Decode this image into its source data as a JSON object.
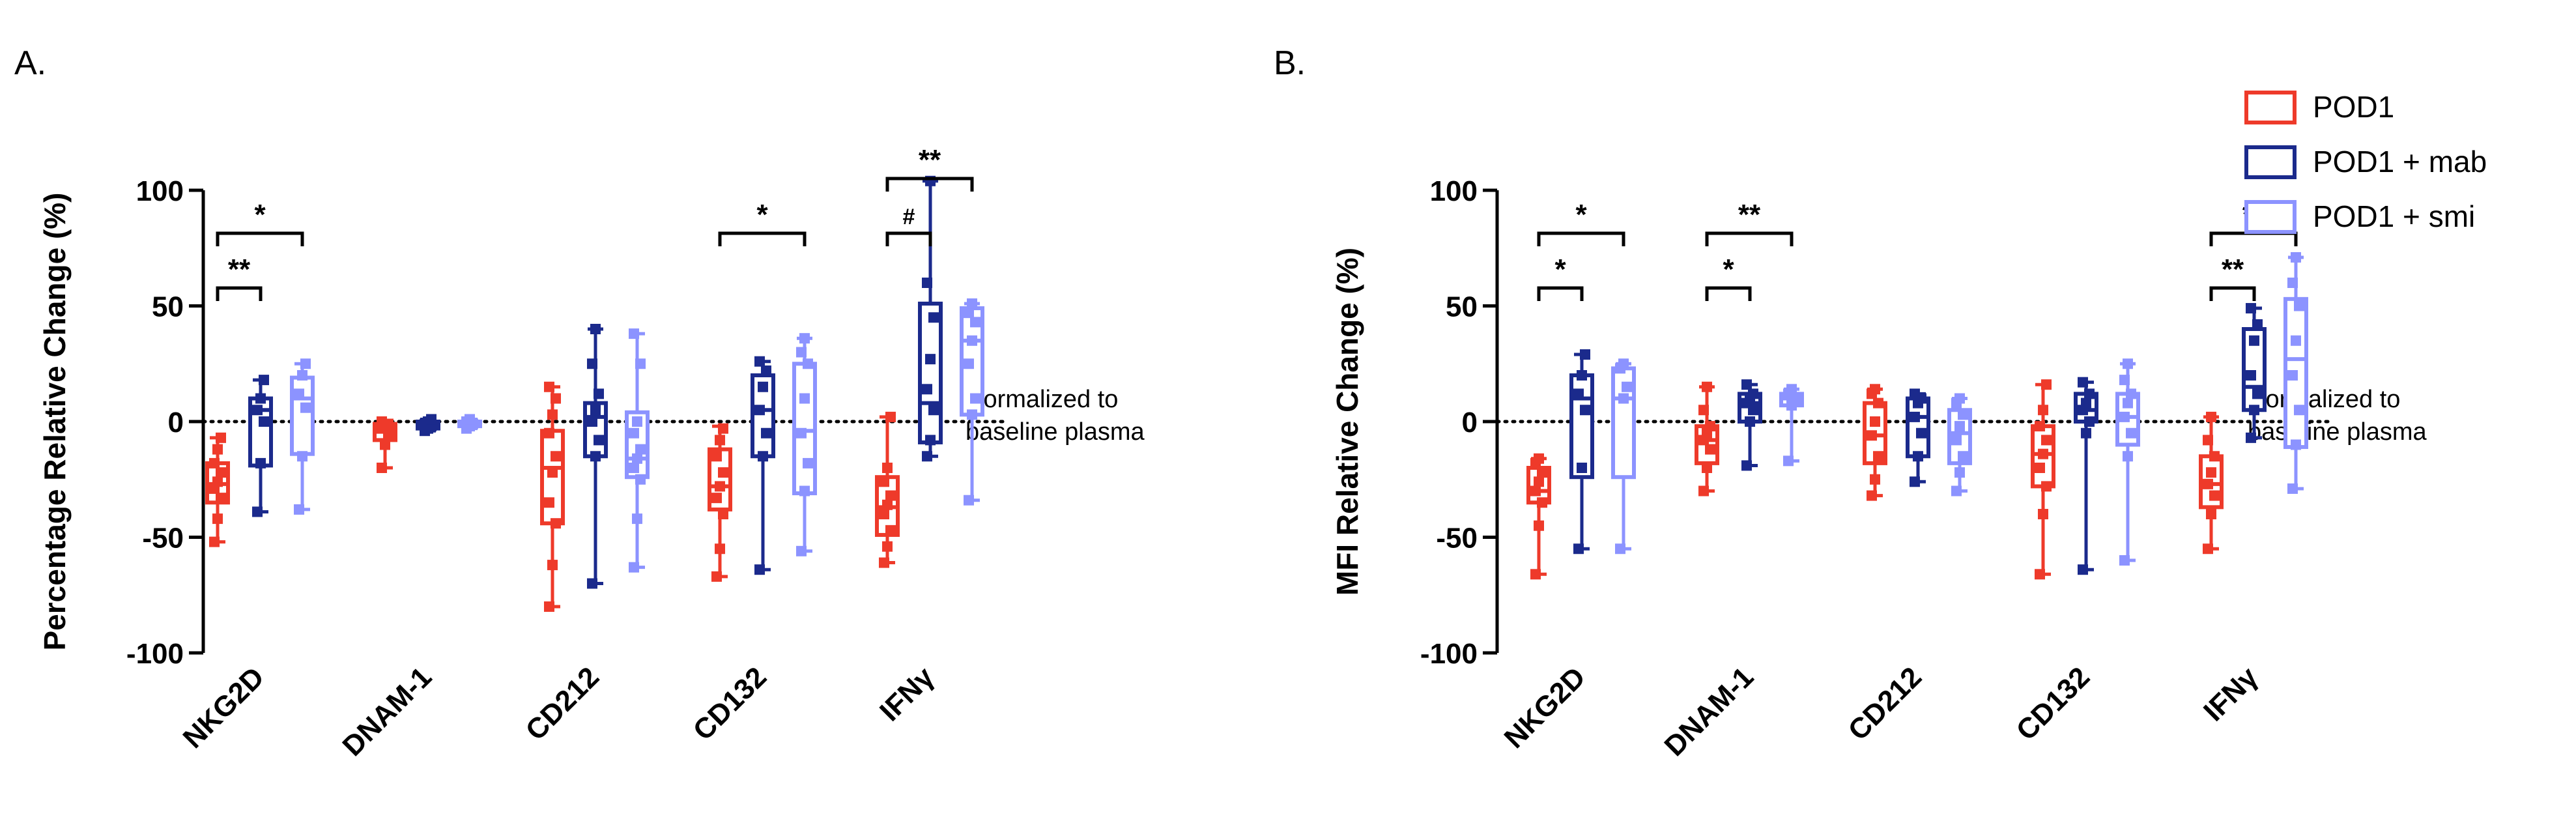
{
  "colors": {
    "pod1": "#ee3a2a",
    "mab": "#1b2a8c",
    "smi": "#8c93ff",
    "axis": "#000000"
  },
  "legend": {
    "entries": [
      {
        "key": "pod1",
        "label": "POD1"
      },
      {
        "key": "mab",
        "label": "POD1 + mab"
      },
      {
        "key": "smi",
        "label": "POD1 + smi"
      }
    ]
  },
  "chart_data": [
    {
      "panel_label": "A.",
      "type": "boxplot",
      "ylabel": "Percentage Relative Change (%)",
      "ylim": [
        -100,
        100
      ],
      "yticks": [
        "100",
        "50",
        "0",
        "-50",
        "-100"
      ],
      "categories": [
        "NKG2D",
        "DNAM-1",
        "CD212",
        "CD132",
        "IFNγ"
      ],
      "reference_line": {
        "y": 0,
        "style": "dotted",
        "note_lines": [
          "Normalized to",
          "baseline plasma"
        ]
      },
      "series": [
        {
          "key": "pod1",
          "name": "POD1",
          "boxes": [
            {
              "min": -52,
              "q1": -35,
              "median": -27,
              "q3": -18,
              "max": -7,
              "points": [
                -52,
                -42,
                -33,
                -29,
                -26,
                -22,
                -18,
                -12,
                -7
              ]
            },
            {
              "min": -20,
              "q1": -8,
              "median": -3,
              "q3": -1,
              "max": 0,
              "points": [
                -20,
                -10,
                -5,
                -3,
                -2,
                -1,
                0
              ]
            },
            {
              "min": -80,
              "q1": -44,
              "median": -20,
              "q3": -4,
              "max": 15,
              "points": [
                -80,
                -62,
                -44,
                -35,
                -22,
                -15,
                -5,
                3,
                10,
                15
              ]
            },
            {
              "min": -67,
              "q1": -38,
              "median": -28,
              "q3": -12,
              "max": -2,
              "points": [
                -67,
                -55,
                -40,
                -33,
                -28,
                -22,
                -15,
                -8,
                -3
              ]
            },
            {
              "min": -61,
              "q1": -49,
              "median": -37,
              "q3": -24,
              "max": 2,
              "points": [
                -61,
                -54,
                -47,
                -40,
                -36,
                -32,
                -26,
                -20,
                2
              ]
            }
          ]
        },
        {
          "key": "mab",
          "name": "POD1 + mab",
          "boxes": [
            {
              "min": -39,
              "q1": -19,
              "median": 5,
              "q3": 10,
              "max": 18,
              "points": [
                -39,
                -18,
                0,
                5,
                10,
                18
              ]
            },
            {
              "min": -4,
              "q1": -3,
              "median": -2,
              "q3": 0,
              "max": 1,
              "points": [
                -4,
                -3,
                -2,
                -1,
                0,
                1
              ]
            },
            {
              "min": -70,
              "q1": -15,
              "median": 2,
              "q3": 8,
              "max": 40,
              "points": [
                -70,
                -15,
                -8,
                0,
                5,
                12,
                25,
                40
              ]
            },
            {
              "min": -64,
              "q1": -15,
              "median": 5,
              "q3": 20,
              "max": 26,
              "points": [
                -64,
                -15,
                -5,
                5,
                15,
                22,
                26
              ]
            },
            {
              "min": -15,
              "q1": -9,
              "median": 8,
              "q3": 51,
              "max": 104,
              "points": [
                -15,
                -8,
                5,
                14,
                27,
                45,
                60,
                104
              ]
            }
          ]
        },
        {
          "key": "smi",
          "name": "POD1 + smi",
          "boxes": [
            {
              "min": -38,
              "q1": -14,
              "median": 10,
              "q3": 19,
              "max": 25,
              "points": [
                -38,
                -15,
                6,
                12,
                20,
                25
              ]
            },
            {
              "min": -3,
              "q1": -2,
              "median": -1,
              "q3": 0,
              "max": 1,
              "points": [
                -3,
                -2,
                -1,
                0,
                1
              ]
            },
            {
              "min": -63,
              "q1": -24,
              "median": -16,
              "q3": 4,
              "max": 38,
              "points": [
                -63,
                -42,
                -25,
                -20,
                -16,
                -12,
                -5,
                0,
                25,
                38
              ]
            },
            {
              "min": -56,
              "q1": -31,
              "median": -4,
              "q3": 25,
              "max": 36,
              "points": [
                -56,
                -30,
                -18,
                -5,
                10,
                25,
                30,
                36
              ]
            },
            {
              "min": -34,
              "q1": 3,
              "median": 35,
              "q3": 49,
              "max": 51,
              "points": [
                -34,
                3,
                10,
                25,
                35,
                43,
                47,
                51
              ]
            }
          ]
        }
      ],
      "significance": [
        {
          "cat": 0,
          "from": "pod1",
          "to": "mab",
          "level": 1,
          "label": "**"
        },
        {
          "cat": 0,
          "from": "pod1",
          "to": "smi",
          "level": 2,
          "label": "*"
        },
        {
          "cat": 3,
          "from": "pod1",
          "to": "smi",
          "level": 2,
          "label": "*"
        },
        {
          "cat": 4,
          "from": "pod1",
          "to": "mab",
          "level": 2,
          "label": "#"
        },
        {
          "cat": 4,
          "from": "pod1",
          "to": "smi",
          "level": 3,
          "label": "**"
        }
      ]
    },
    {
      "panel_label": "B.",
      "type": "boxplot",
      "ylabel": "MFI Relative Change (%)",
      "ylim": [
        -100,
        100
      ],
      "yticks": [
        "100",
        "50",
        "0",
        "-50",
        "-100"
      ],
      "categories": [
        "NKG2D",
        "DNAM-1",
        "CD212",
        "CD132",
        "IFNγ"
      ],
      "reference_line": {
        "y": 0,
        "style": "dotted",
        "note_lines": [
          "Normalized to",
          "baseline plasma"
        ]
      },
      "series": [
        {
          "key": "pod1",
          "name": "POD1",
          "boxes": [
            {
              "min": -66,
              "q1": -35,
              "median": -30,
              "q3": -20,
              "max": -16,
              "points": [
                -66,
                -45,
                -35,
                -30,
                -26,
                -22,
                -18,
                -16
              ]
            },
            {
              "min": -30,
              "q1": -18,
              "median": -8,
              "q3": -2,
              "max": 15,
              "points": [
                -30,
                -20,
                -12,
                -8,
                -5,
                -2,
                5,
                15
              ]
            },
            {
              "min": -32,
              "q1": -18,
              "median": -6,
              "q3": 8,
              "max": 14,
              "points": [
                -32,
                -25,
                -15,
                -6,
                0,
                8,
                12,
                14
              ]
            },
            {
              "min": -66,
              "q1": -28,
              "median": -14,
              "q3": -2,
              "max": 16,
              "points": [
                -66,
                -40,
                -28,
                -20,
                -14,
                -8,
                -2,
                5,
                16
              ]
            },
            {
              "min": -55,
              "q1": -37,
              "median": -27,
              "q3": -15,
              "max": 2,
              "points": [
                -55,
                -40,
                -32,
                -27,
                -22,
                -15,
                -8,
                2
              ]
            }
          ]
        },
        {
          "key": "mab",
          "name": "POD1 + mab",
          "boxes": [
            {
              "min": -55,
              "q1": -24,
              "median": 10,
              "q3": 20,
              "max": 29,
              "points": [
                -55,
                -20,
                5,
                12,
                20,
                29
              ]
            },
            {
              "min": -19,
              "q1": 0,
              "median": 8,
              "q3": 12,
              "max": 16,
              "points": [
                -19,
                0,
                5,
                8,
                10,
                12,
                16
              ]
            },
            {
              "min": -26,
              "q1": -15,
              "median": 2,
              "q3": 10,
              "max": 12,
              "points": [
                -26,
                -15,
                -5,
                2,
                8,
                10,
                12
              ]
            },
            {
              "min": -64,
              "q1": 0,
              "median": 5,
              "q3": 12,
              "max": 17,
              "points": [
                -64,
                -5,
                0,
                5,
                8,
                12,
                17
              ]
            },
            {
              "min": -7,
              "q1": 5,
              "median": 15,
              "q3": 40,
              "max": 49,
              "points": [
                -7,
                5,
                12,
                20,
                35,
                42,
                49
              ]
            }
          ]
        },
        {
          "key": "smi",
          "name": "POD1 + smi",
          "boxes": [
            {
              "min": -55,
              "q1": -24,
              "median": 10,
              "q3": 23,
              "max": 25,
              "points": [
                -55,
                10,
                15,
                23,
                25
              ]
            },
            {
              "min": -17,
              "q1": 7,
              "median": 10,
              "q3": 12,
              "max": 14,
              "points": [
                -17,
                7,
                10,
                12,
                14
              ]
            },
            {
              "min": -30,
              "q1": -18,
              "median": -5,
              "q3": 5,
              "max": 10,
              "points": [
                -30,
                -22,
                -15,
                -8,
                -2,
                3,
                8,
                10
              ]
            },
            {
              "min": -60,
              "q1": -10,
              "median": 2,
              "q3": 12,
              "max": 25,
              "points": [
                -60,
                -15,
                -5,
                2,
                8,
                12,
                18,
                25
              ]
            },
            {
              "min": -29,
              "q1": -11,
              "median": 27,
              "q3": 53,
              "max": 71,
              "points": [
                -29,
                -10,
                5,
                20,
                35,
                50,
                60,
                71
              ]
            }
          ]
        }
      ],
      "significance": [
        {
          "cat": 0,
          "from": "pod1",
          "to": "mab",
          "level": 1,
          "label": "*"
        },
        {
          "cat": 0,
          "from": "pod1",
          "to": "smi",
          "level": 2,
          "label": "*"
        },
        {
          "cat": 1,
          "from": "pod1",
          "to": "mab",
          "level": 1,
          "label": "*"
        },
        {
          "cat": 1,
          "from": "pod1",
          "to": "smi",
          "level": 2,
          "label": "**"
        },
        {
          "cat": 4,
          "from": "pod1",
          "to": "mab",
          "level": 1,
          "label": "**"
        },
        {
          "cat": 4,
          "from": "pod1",
          "to": "smi",
          "level": 2,
          "label": "**"
        }
      ]
    }
  ]
}
